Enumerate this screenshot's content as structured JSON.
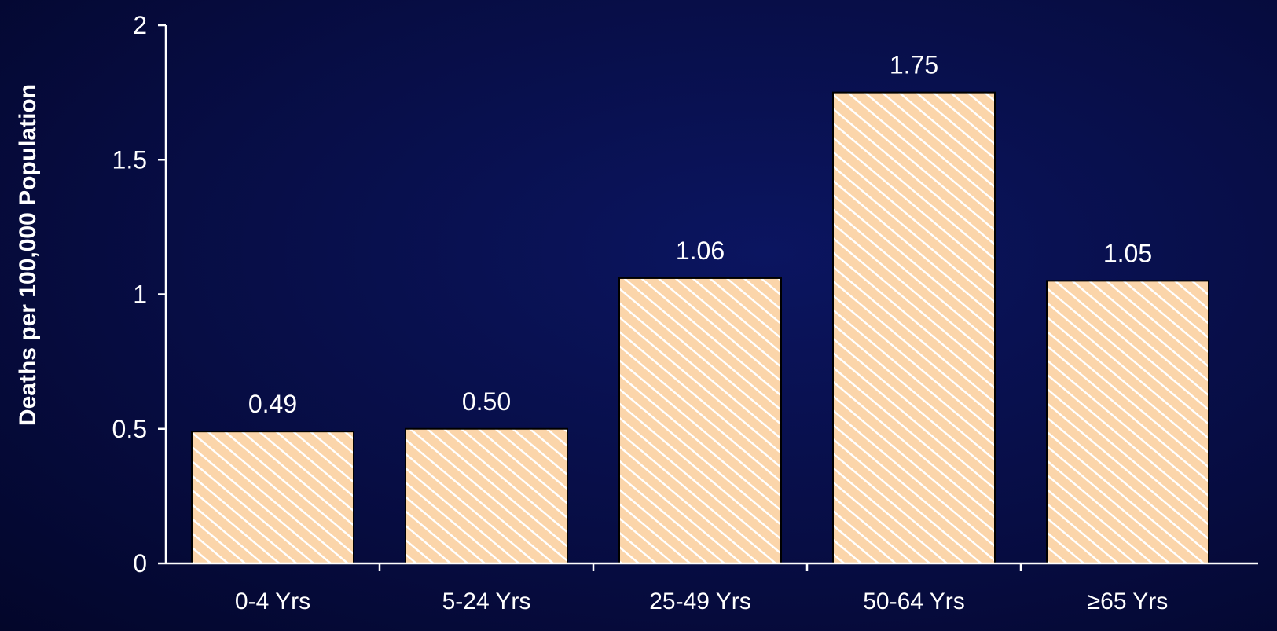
{
  "chart_data": {
    "type": "bar",
    "title": "",
    "xlabel": "",
    "ylabel": "Deaths per  100,000 Population",
    "categories": [
      "0-4 Yrs",
      "5-24 Yrs",
      "25-49 Yrs",
      "50-64 Yrs",
      "≥65 Yrs"
    ],
    "values": [
      0.49,
      0.5,
      1.06,
      1.75,
      1.05
    ],
    "value_labels": [
      "0.49",
      "0.50",
      "1.06",
      "1.75",
      "1.05"
    ],
    "ylim": [
      0,
      2
    ],
    "yticks": [
      0,
      0.5,
      1,
      1.5,
      2
    ],
    "ytick_labels": [
      "0",
      "0.5",
      "1",
      "1.5",
      "2"
    ],
    "grid": false,
    "legend": "none",
    "colors": {
      "background": "#070d44",
      "bar_fill": "#fbd5aa",
      "bar_hatch": "#ffffff",
      "bar_edge": "#000000",
      "axis": "#ffffff",
      "text": "#ffffff"
    }
  }
}
